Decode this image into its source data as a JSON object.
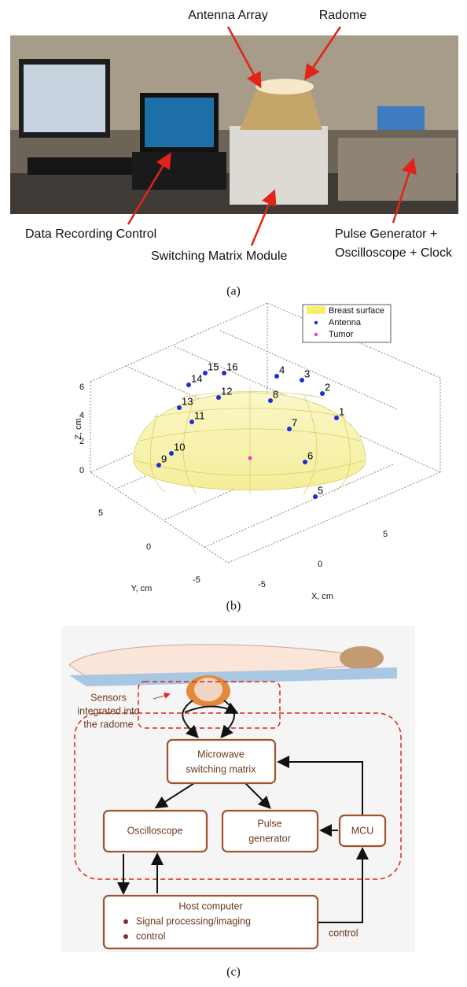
{
  "panel_a": {
    "labels": {
      "antenna_array": "Antenna Array",
      "radome": "Radome",
      "data_recording": "Data Recording Control",
      "switching": "Switching Matrix Module",
      "pulse_1": "Pulse Generator +",
      "pulse_2": "Oscilloscope + Clock"
    },
    "caption": "(a)"
  },
  "panel_b": {
    "legend": [
      "Breast surface",
      "Antenna",
      "Tumor"
    ],
    "z_ticks": [
      "0",
      "2",
      "4",
      "6"
    ],
    "y_ticks": [
      "5",
      "0",
      "-5"
    ],
    "x_ticks": [
      "-5",
      "0",
      "5"
    ],
    "z_label": "Z, cm",
    "y_label": "Y, cm",
    "x_label": "X, cm",
    "antennas": [
      "1",
      "2",
      "3",
      "4",
      "5",
      "6",
      "7",
      "8",
      "9",
      "10",
      "11",
      "12",
      "13",
      "14",
      "15",
      "16"
    ],
    "caption": "(b)"
  },
  "panel_c": {
    "sensors": [
      "Sensors",
      "integrated into",
      "the radome"
    ],
    "switching": [
      "Microwave",
      "switching matrix"
    ],
    "oscilloscope": "Oscilloscope",
    "pulse": [
      "Pulse",
      "generator"
    ],
    "mcu": "MCU",
    "host": "Host computer",
    "host_items": [
      "Signal processing/imaging",
      "control"
    ],
    "control": "control",
    "caption": "(c)"
  }
}
